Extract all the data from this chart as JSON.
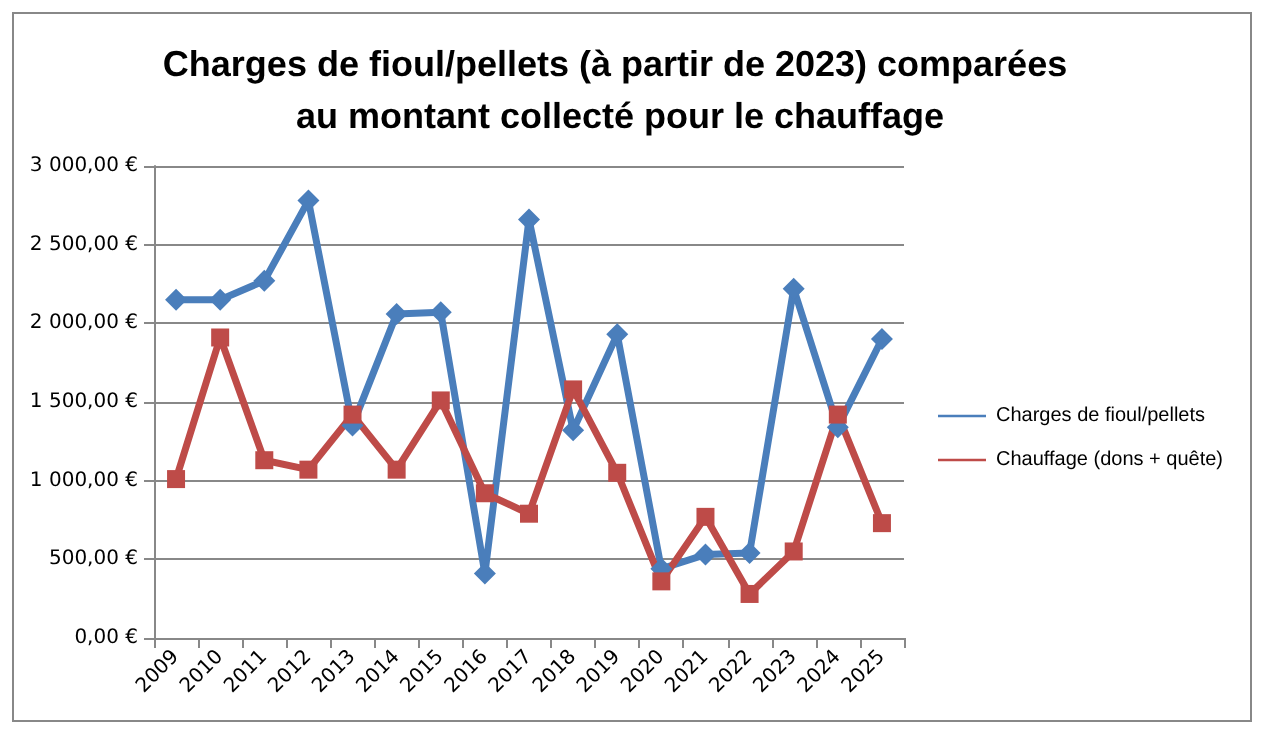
{
  "chart_data": {
    "type": "line",
    "title": "Charges de fioul/pellets (à partir de 2023) comparées au montant collecté pour le chauffage",
    "categories": [
      "2009",
      "2010",
      "2011",
      "2012",
      "2013",
      "2014",
      "2015",
      "2016",
      "2017",
      "2018",
      "2019",
      "2020",
      "2021",
      "2022",
      "2023",
      "2024",
      "2025"
    ],
    "series": [
      {
        "name": "Charges de fioul/pellets",
        "color": "#4a7ebb",
        "marker": "diamond",
        "values": [
          2150,
          2150,
          2270,
          2780,
          1350,
          2060,
          2070,
          410,
          2660,
          1320,
          1930,
          440,
          530,
          540,
          2220,
          1340,
          1900
        ]
      },
      {
        "name": "Chauffage (dons + quête)",
        "color": "#be4b48",
        "marker": "square",
        "values": [
          1010,
          1910,
          1130,
          1070,
          1420,
          1070,
          1510,
          920,
          790,
          1580,
          1050,
          360,
          770,
          280,
          550,
          1420,
          730
        ]
      }
    ],
    "ylim": [
      0,
      3000
    ],
    "yticks": [
      {
        "value": 0,
        "label": "0,00 €"
      },
      {
        "value": 500,
        "label": "500,00 €"
      },
      {
        "value": 1000,
        "label": "1 000,00 €"
      },
      {
        "value": 1500,
        "label": "1 500,00 €"
      },
      {
        "value": 2000,
        "label": "2 000,00 €"
      },
      {
        "value": 2500,
        "label": "2 500,00 €"
      },
      {
        "value": 3000,
        "label": "3 000,00 €"
      }
    ],
    "grid": "y",
    "legend": "right"
  }
}
